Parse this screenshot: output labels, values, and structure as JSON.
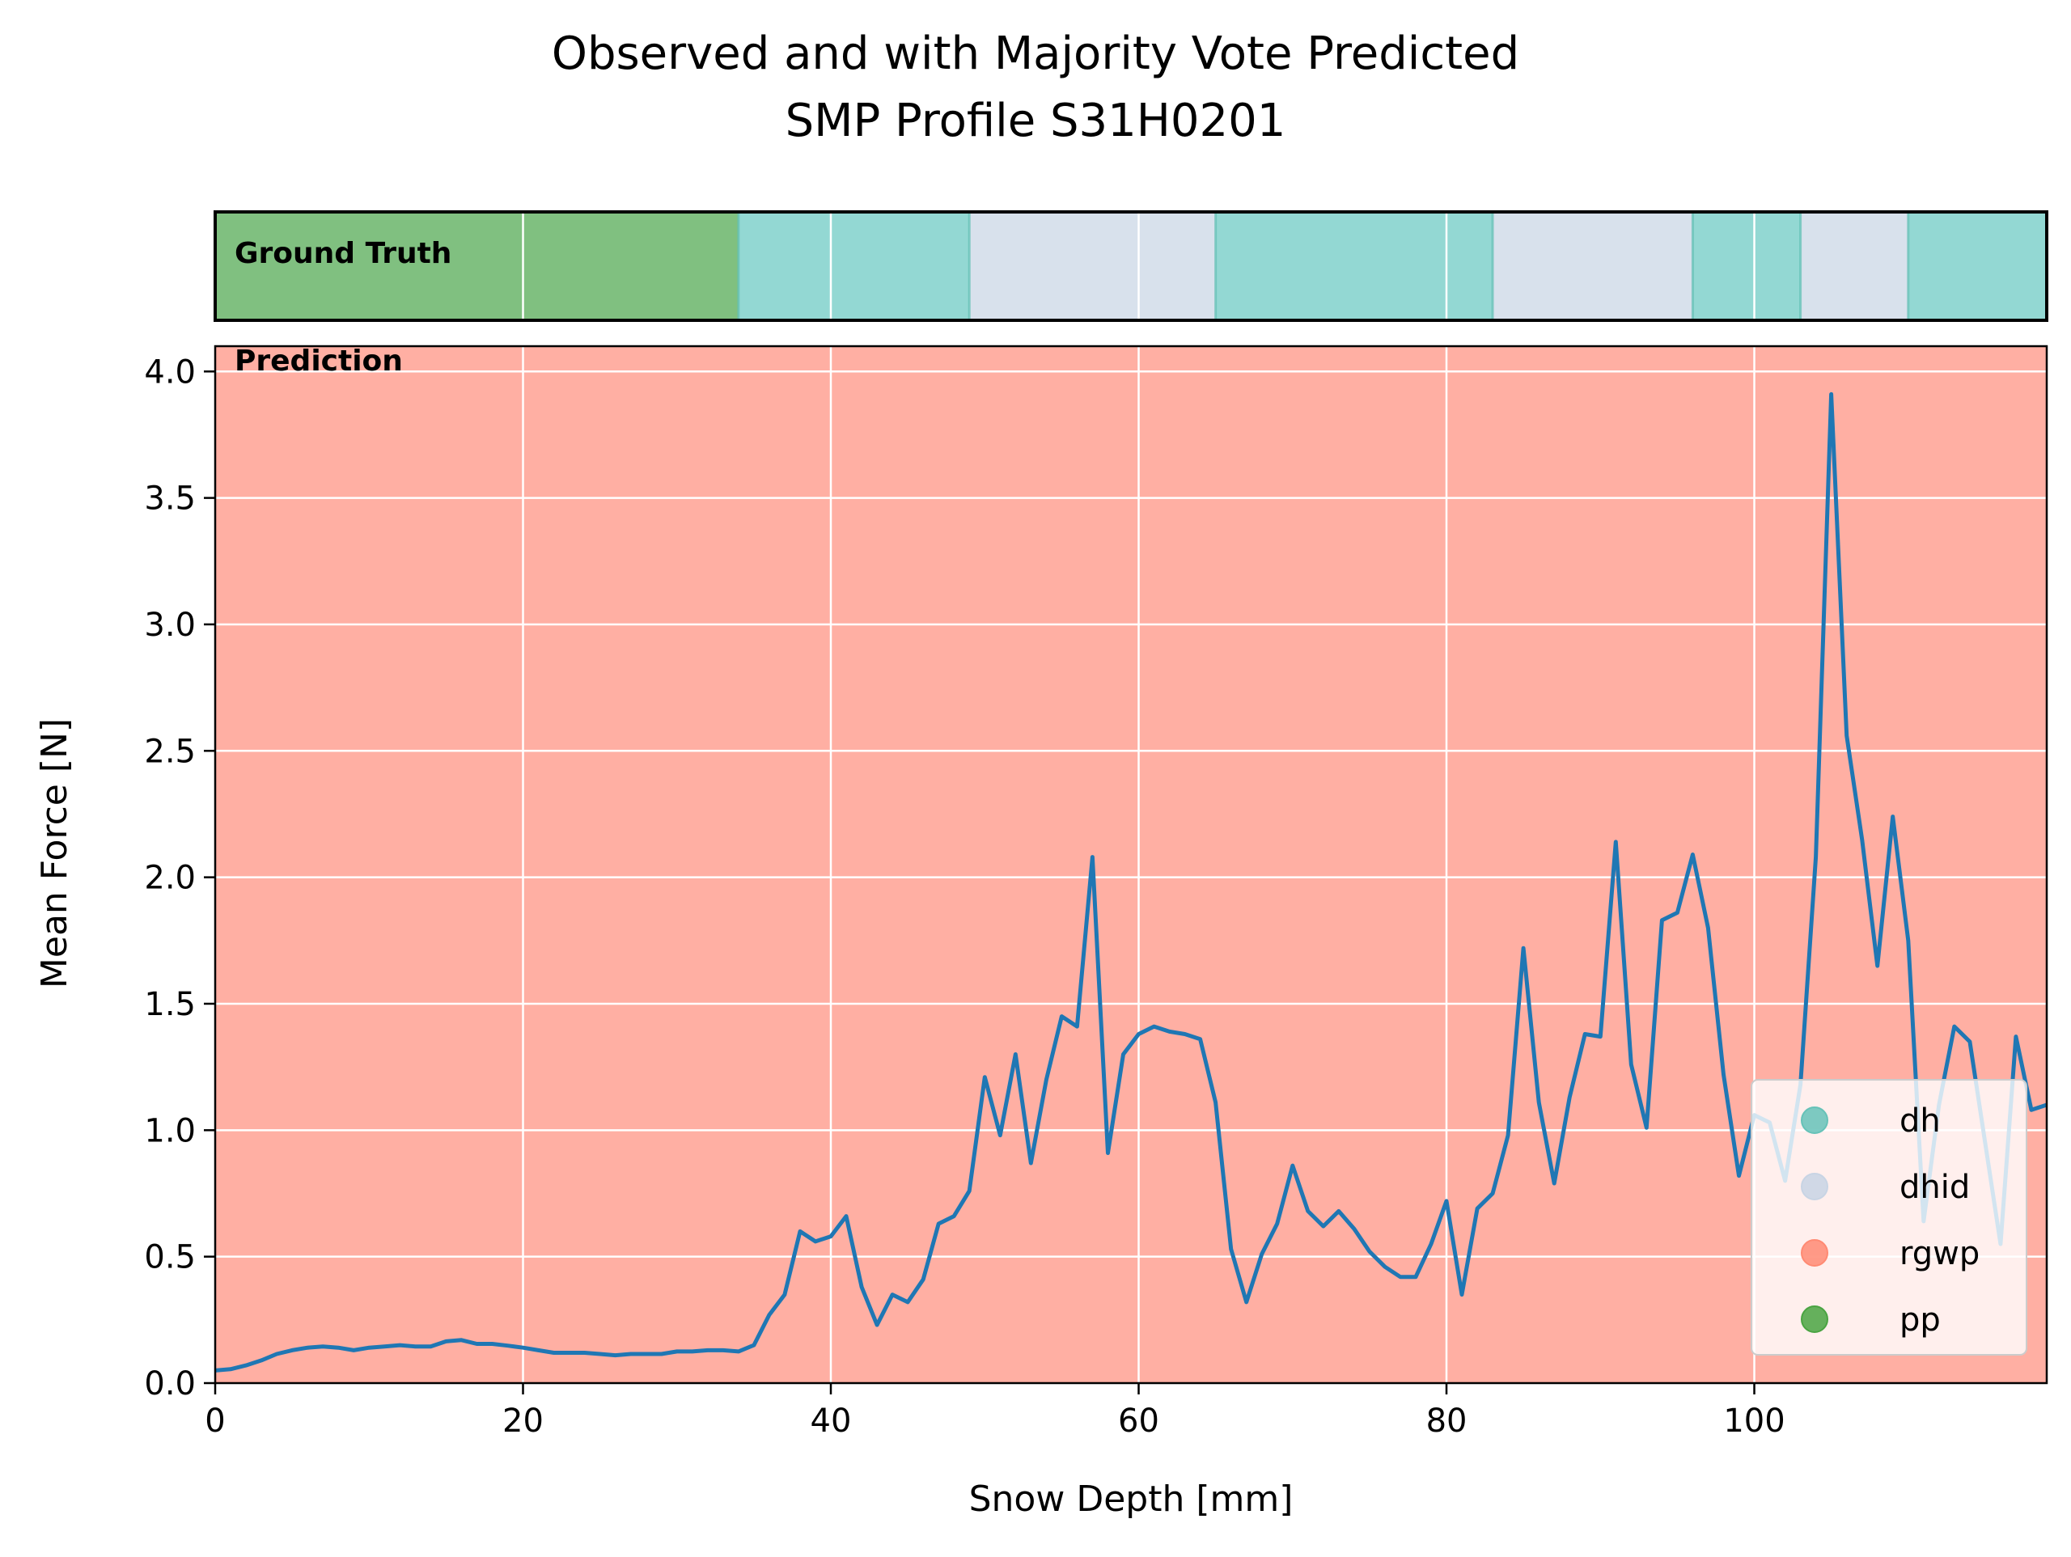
{
  "chart_data": {
    "type": "line",
    "title_lines": [
      "Observed and with Majority Vote Predicted",
      "SMP Profile S31H0201"
    ],
    "xlabel": "Snow Depth [mm]",
    "ylabel": "Mean Force [N]",
    "xlim": [
      0,
      119
    ],
    "ylim": [
      0,
      4.1
    ],
    "x_ticks": [
      0,
      20,
      40,
      60,
      80,
      100
    ],
    "x_tick_labels": [
      "0",
      "20",
      "40",
      "60",
      "80",
      "100"
    ],
    "y_ticks": [
      0,
      0.5,
      1.0,
      1.5,
      2.0,
      2.5,
      3.0,
      3.5,
      4.0
    ],
    "y_tick_labels": [
      "0.0",
      "0.5",
      "1.0",
      "1.5",
      "2.0",
      "2.5",
      "3.0",
      "3.5",
      "4.0"
    ],
    "grid": true,
    "legend_placement": "lower-right",
    "legend": [
      {
        "label": "dh",
        "color": "#66c2b8"
      },
      {
        "label": "dhid",
        "color": "#c8d4e4"
      },
      {
        "label": "rgwp",
        "color": "#ff8a73"
      },
      {
        "label": "pp",
        "color": "#4aa442"
      }
    ],
    "ground_truth_label": "Ground Truth",
    "prediction_label": "Prediction",
    "prediction_class": "rgwp",
    "prediction_color": "#ffafa3",
    "line_color": "#1f77b4",
    "ground_truth_segments": [
      {
        "start": 0,
        "end": 34,
        "class": "pp",
        "color": "#80c080"
      },
      {
        "start": 34,
        "end": 49,
        "class": "dh",
        "color": "#93d8d3"
      },
      {
        "start": 49,
        "end": 65,
        "class": "dhid",
        "color": "#d8e1ec"
      },
      {
        "start": 65,
        "end": 83,
        "class": "dh",
        "color": "#93d8d3"
      },
      {
        "start": 83,
        "end": 96,
        "class": "dhid",
        "color": "#d8e1ec"
      },
      {
        "start": 96,
        "end": 103,
        "class": "dh",
        "color": "#93d8d3"
      },
      {
        "start": 103,
        "end": 110,
        "class": "dhid",
        "color": "#d8e1ec"
      },
      {
        "start": 110,
        "end": 119,
        "class": "dh",
        "color": "#93d8d3"
      }
    ],
    "series": [
      {
        "x": [
          0,
          1,
          2,
          3,
          4,
          5,
          6,
          7,
          8,
          9,
          10,
          11,
          12,
          13,
          14,
          15,
          16,
          17,
          18,
          19,
          20,
          21,
          22,
          23,
          24,
          25,
          26,
          27,
          28,
          29,
          30,
          31,
          32,
          33,
          34,
          35,
          36,
          37,
          38,
          39,
          40,
          41,
          42,
          43,
          44,
          45,
          46,
          47,
          48,
          49,
          50,
          51,
          52,
          53,
          54,
          55,
          56,
          57,
          58,
          59,
          60,
          61,
          62,
          63,
          64,
          65,
          66,
          67,
          68,
          69,
          70,
          71,
          72,
          73,
          74,
          75,
          76,
          77,
          78,
          79,
          80,
          81,
          82,
          83,
          84,
          85,
          86,
          87,
          88,
          89,
          90,
          91,
          92,
          93,
          94,
          95,
          96,
          97,
          98,
          99,
          100,
          101,
          102,
          103,
          104,
          105,
          106,
          107,
          108,
          109,
          110,
          111,
          112,
          113,
          114,
          115,
          116,
          117,
          118,
          119
        ],
        "y": [
          0.05,
          0.055,
          0.07,
          0.09,
          0.115,
          0.13,
          0.14,
          0.145,
          0.14,
          0.13,
          0.14,
          0.145,
          0.15,
          0.145,
          0.145,
          0.165,
          0.17,
          0.155,
          0.155,
          0.148,
          0.14,
          0.13,
          0.12,
          0.12,
          0.12,
          0.115,
          0.11,
          0.115,
          0.115,
          0.115,
          0.125,
          0.125,
          0.13,
          0.13,
          0.125,
          0.15,
          0.27,
          0.35,
          0.6,
          0.56,
          0.58,
          0.66,
          0.38,
          0.23,
          0.35,
          0.32,
          0.41,
          0.63,
          0.66,
          0.76,
          1.21,
          0.98,
          1.3,
          0.87,
          1.2,
          1.45,
          1.41,
          2.08,
          0.91,
          1.3,
          1.38,
          1.41,
          1.39,
          1.38,
          1.36,
          1.11,
          0.53,
          0.32,
          0.51,
          0.63,
          0.86,
          0.68,
          0.62,
          0.68,
          0.61,
          0.52,
          0.46,
          0.42,
          0.42,
          0.55,
          0.72,
          0.35,
          0.69,
          0.75,
          0.98,
          1.72,
          1.11,
          0.79,
          1.13,
          1.38,
          1.37,
          2.14,
          1.26,
          1.01,
          1.83,
          1.86,
          2.09,
          1.8,
          1.22,
          0.82,
          1.06,
          1.03,
          0.8,
          1.18,
          2.08,
          3.91,
          2.56,
          2.15,
          1.65,
          2.24,
          1.75,
          0.64,
          1.1,
          1.41,
          1.35,
          0.95,
          0.55,
          1.37,
          1.08,
          1.1
        ]
      }
    ]
  }
}
